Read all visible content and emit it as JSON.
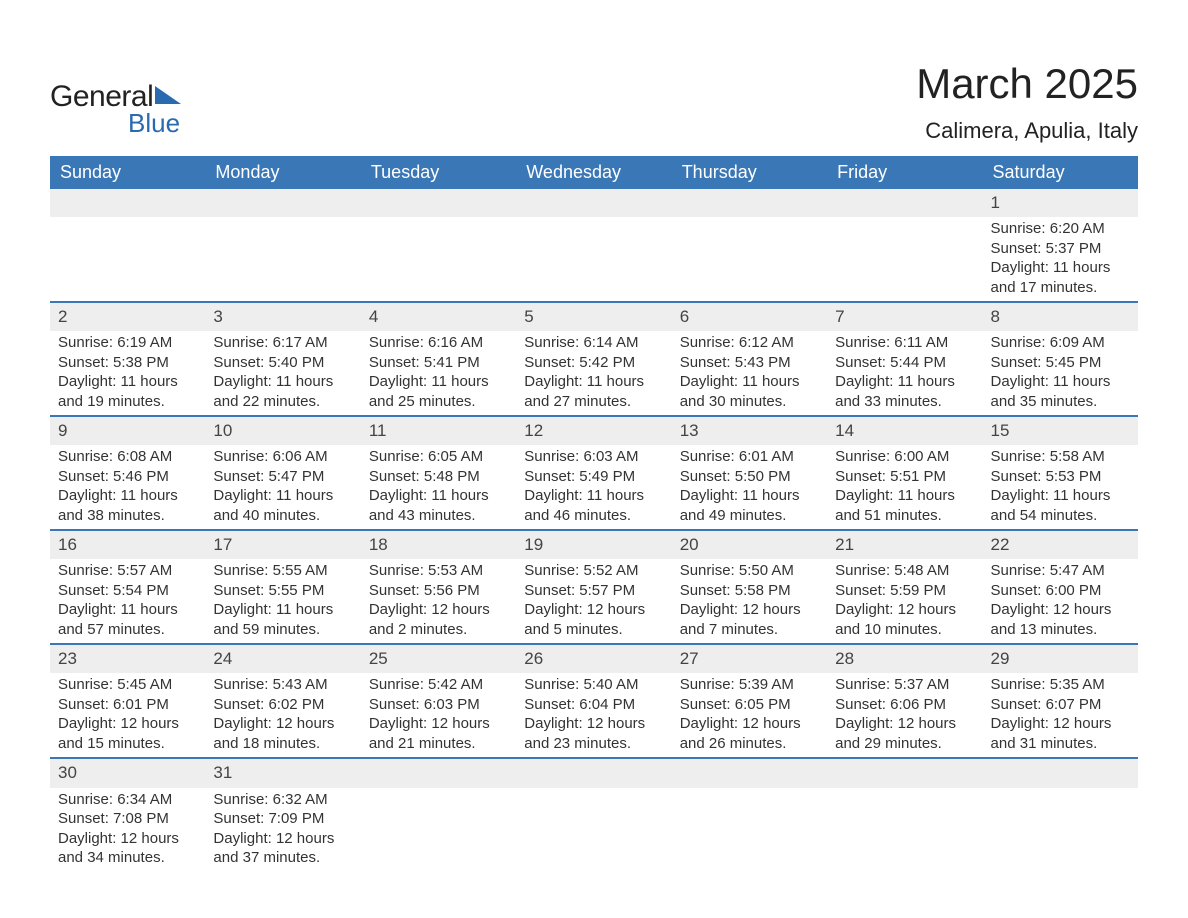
{
  "logo": {
    "general": "General",
    "blue": "Blue"
  },
  "title": "March 2025",
  "location": "Calimera, Apulia, Italy",
  "colors": {
    "header_bg": "#3a77b7",
    "header_text": "#ffffff",
    "border": "#3a77b7",
    "daynum_bg": "#eeeeee",
    "text": "#333333",
    "logo_accent": "#2a6ab0",
    "background": "#ffffff"
  },
  "weekdays": [
    "Sunday",
    "Monday",
    "Tuesday",
    "Wednesday",
    "Thursday",
    "Friday",
    "Saturday"
  ],
  "weeks": [
    [
      {
        "blank": true
      },
      {
        "blank": true
      },
      {
        "blank": true
      },
      {
        "blank": true
      },
      {
        "blank": true
      },
      {
        "blank": true
      },
      {
        "day": "1",
        "sunrise": "Sunrise: 6:20 AM",
        "sunset": "Sunset: 5:37 PM",
        "dl1": "Daylight: 11 hours",
        "dl2": "and 17 minutes."
      }
    ],
    [
      {
        "day": "2",
        "sunrise": "Sunrise: 6:19 AM",
        "sunset": "Sunset: 5:38 PM",
        "dl1": "Daylight: 11 hours",
        "dl2": "and 19 minutes."
      },
      {
        "day": "3",
        "sunrise": "Sunrise: 6:17 AM",
        "sunset": "Sunset: 5:40 PM",
        "dl1": "Daylight: 11 hours",
        "dl2": "and 22 minutes."
      },
      {
        "day": "4",
        "sunrise": "Sunrise: 6:16 AM",
        "sunset": "Sunset: 5:41 PM",
        "dl1": "Daylight: 11 hours",
        "dl2": "and 25 minutes."
      },
      {
        "day": "5",
        "sunrise": "Sunrise: 6:14 AM",
        "sunset": "Sunset: 5:42 PM",
        "dl1": "Daylight: 11 hours",
        "dl2": "and 27 minutes."
      },
      {
        "day": "6",
        "sunrise": "Sunrise: 6:12 AM",
        "sunset": "Sunset: 5:43 PM",
        "dl1": "Daylight: 11 hours",
        "dl2": "and 30 minutes."
      },
      {
        "day": "7",
        "sunrise": "Sunrise: 6:11 AM",
        "sunset": "Sunset: 5:44 PM",
        "dl1": "Daylight: 11 hours",
        "dl2": "and 33 minutes."
      },
      {
        "day": "8",
        "sunrise": "Sunrise: 6:09 AM",
        "sunset": "Sunset: 5:45 PM",
        "dl1": "Daylight: 11 hours",
        "dl2": "and 35 minutes."
      }
    ],
    [
      {
        "day": "9",
        "sunrise": "Sunrise: 6:08 AM",
        "sunset": "Sunset: 5:46 PM",
        "dl1": "Daylight: 11 hours",
        "dl2": "and 38 minutes."
      },
      {
        "day": "10",
        "sunrise": "Sunrise: 6:06 AM",
        "sunset": "Sunset: 5:47 PM",
        "dl1": "Daylight: 11 hours",
        "dl2": "and 40 minutes."
      },
      {
        "day": "11",
        "sunrise": "Sunrise: 6:05 AM",
        "sunset": "Sunset: 5:48 PM",
        "dl1": "Daylight: 11 hours",
        "dl2": "and 43 minutes."
      },
      {
        "day": "12",
        "sunrise": "Sunrise: 6:03 AM",
        "sunset": "Sunset: 5:49 PM",
        "dl1": "Daylight: 11 hours",
        "dl2": "and 46 minutes."
      },
      {
        "day": "13",
        "sunrise": "Sunrise: 6:01 AM",
        "sunset": "Sunset: 5:50 PM",
        "dl1": "Daylight: 11 hours",
        "dl2": "and 49 minutes."
      },
      {
        "day": "14",
        "sunrise": "Sunrise: 6:00 AM",
        "sunset": "Sunset: 5:51 PM",
        "dl1": "Daylight: 11 hours",
        "dl2": "and 51 minutes."
      },
      {
        "day": "15",
        "sunrise": "Sunrise: 5:58 AM",
        "sunset": "Sunset: 5:53 PM",
        "dl1": "Daylight: 11 hours",
        "dl2": "and 54 minutes."
      }
    ],
    [
      {
        "day": "16",
        "sunrise": "Sunrise: 5:57 AM",
        "sunset": "Sunset: 5:54 PM",
        "dl1": "Daylight: 11 hours",
        "dl2": "and 57 minutes."
      },
      {
        "day": "17",
        "sunrise": "Sunrise: 5:55 AM",
        "sunset": "Sunset: 5:55 PM",
        "dl1": "Daylight: 11 hours",
        "dl2": "and 59 minutes."
      },
      {
        "day": "18",
        "sunrise": "Sunrise: 5:53 AM",
        "sunset": "Sunset: 5:56 PM",
        "dl1": "Daylight: 12 hours",
        "dl2": "and 2 minutes."
      },
      {
        "day": "19",
        "sunrise": "Sunrise: 5:52 AM",
        "sunset": "Sunset: 5:57 PM",
        "dl1": "Daylight: 12 hours",
        "dl2": "and 5 minutes."
      },
      {
        "day": "20",
        "sunrise": "Sunrise: 5:50 AM",
        "sunset": "Sunset: 5:58 PM",
        "dl1": "Daylight: 12 hours",
        "dl2": "and 7 minutes."
      },
      {
        "day": "21",
        "sunrise": "Sunrise: 5:48 AM",
        "sunset": "Sunset: 5:59 PM",
        "dl1": "Daylight: 12 hours",
        "dl2": "and 10 minutes."
      },
      {
        "day": "22",
        "sunrise": "Sunrise: 5:47 AM",
        "sunset": "Sunset: 6:00 PM",
        "dl1": "Daylight: 12 hours",
        "dl2": "and 13 minutes."
      }
    ],
    [
      {
        "day": "23",
        "sunrise": "Sunrise: 5:45 AM",
        "sunset": "Sunset: 6:01 PM",
        "dl1": "Daylight: 12 hours",
        "dl2": "and 15 minutes."
      },
      {
        "day": "24",
        "sunrise": "Sunrise: 5:43 AM",
        "sunset": "Sunset: 6:02 PM",
        "dl1": "Daylight: 12 hours",
        "dl2": "and 18 minutes."
      },
      {
        "day": "25",
        "sunrise": "Sunrise: 5:42 AM",
        "sunset": "Sunset: 6:03 PM",
        "dl1": "Daylight: 12 hours",
        "dl2": "and 21 minutes."
      },
      {
        "day": "26",
        "sunrise": "Sunrise: 5:40 AM",
        "sunset": "Sunset: 6:04 PM",
        "dl1": "Daylight: 12 hours",
        "dl2": "and 23 minutes."
      },
      {
        "day": "27",
        "sunrise": "Sunrise: 5:39 AM",
        "sunset": "Sunset: 6:05 PM",
        "dl1": "Daylight: 12 hours",
        "dl2": "and 26 minutes."
      },
      {
        "day": "28",
        "sunrise": "Sunrise: 5:37 AM",
        "sunset": "Sunset: 6:06 PM",
        "dl1": "Daylight: 12 hours",
        "dl2": "and 29 minutes."
      },
      {
        "day": "29",
        "sunrise": "Sunrise: 5:35 AM",
        "sunset": "Sunset: 6:07 PM",
        "dl1": "Daylight: 12 hours",
        "dl2": "and 31 minutes."
      }
    ],
    [
      {
        "day": "30",
        "sunrise": "Sunrise: 6:34 AM",
        "sunset": "Sunset: 7:08 PM",
        "dl1": "Daylight: 12 hours",
        "dl2": "and 34 minutes."
      },
      {
        "day": "31",
        "sunrise": "Sunrise: 6:32 AM",
        "sunset": "Sunset: 7:09 PM",
        "dl1": "Daylight: 12 hours",
        "dl2": "and 37 minutes."
      },
      {
        "blank": true
      },
      {
        "blank": true
      },
      {
        "blank": true
      },
      {
        "blank": true
      },
      {
        "blank": true
      }
    ]
  ]
}
